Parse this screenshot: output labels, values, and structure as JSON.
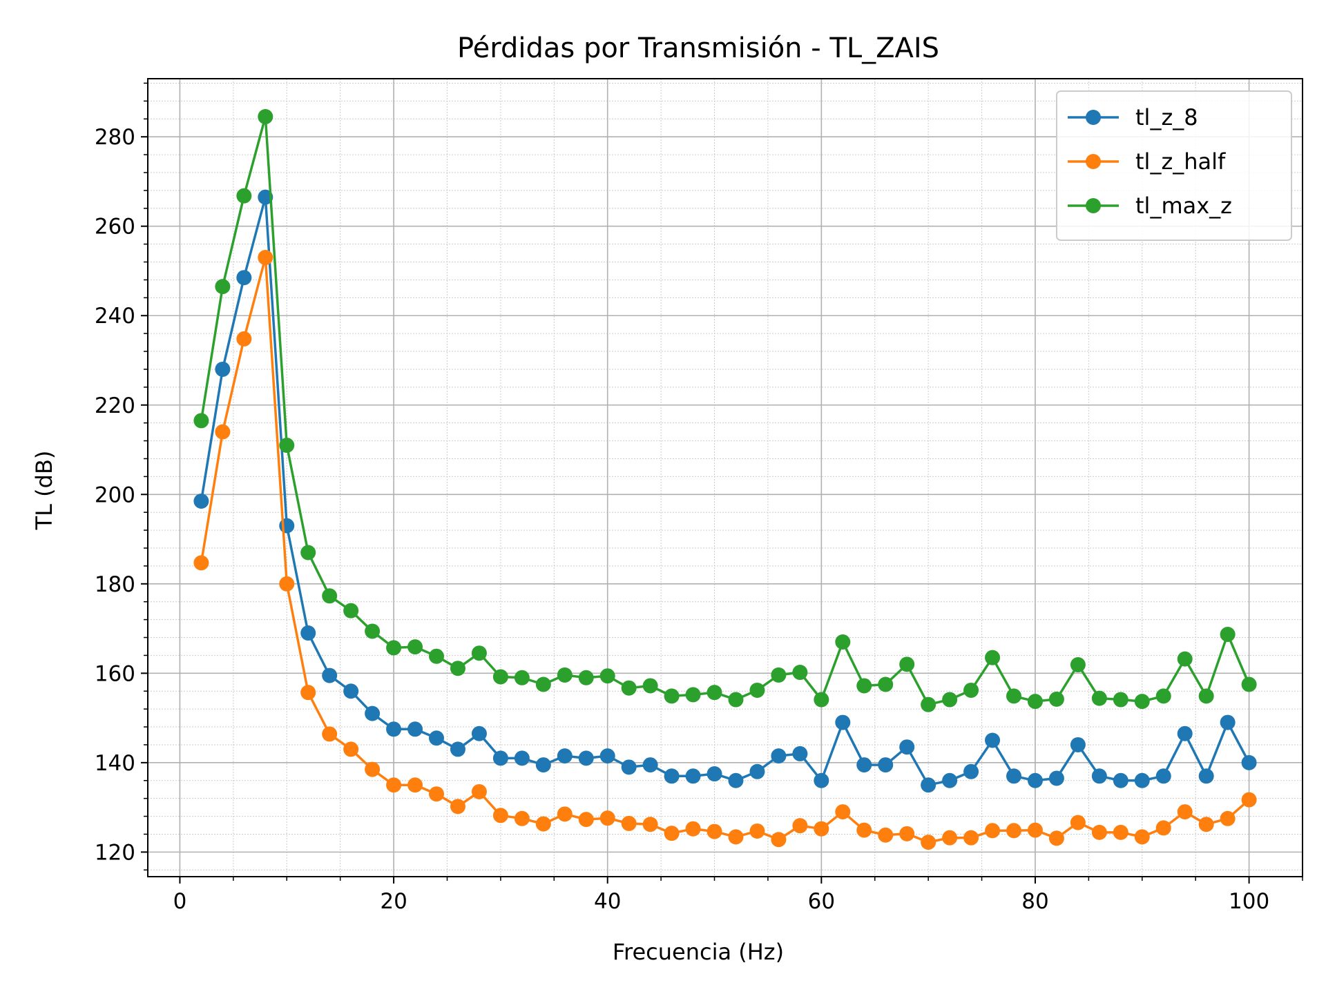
{
  "chart_data": {
    "type": "line",
    "title": "Pérdidas por Transmisión - TL_ZAIS",
    "xlabel": "Frecuencia (Hz)",
    "ylabel": "TL (dB)",
    "xlim": [
      -3,
      105
    ],
    "ylim": [
      114.5,
      293
    ],
    "xticks": [
      0,
      20,
      40,
      60,
      80,
      100
    ],
    "yticks": [
      120,
      140,
      160,
      180,
      200,
      220,
      240,
      260,
      280
    ],
    "grid": true,
    "minor_grid": true,
    "legend_position": "upper right",
    "x": [
      2,
      4,
      6,
      8,
      10,
      12,
      14,
      16,
      18,
      20,
      22,
      24,
      26,
      28,
      30,
      32,
      34,
      36,
      38,
      40,
      42,
      44,
      46,
      48,
      50,
      52,
      54,
      56,
      58,
      60,
      62,
      64,
      66,
      68,
      70,
      72,
      74,
      76,
      78,
      80,
      82,
      84,
      86,
      88,
      90,
      92,
      94,
      96,
      98,
      100
    ],
    "series": [
      {
        "name": "tl_z_8",
        "color": "#1f77b4",
        "values": [
          198.5,
          228,
          248.5,
          266.5,
          193,
          169,
          159.5,
          156,
          151,
          147.5,
          147.5,
          145.5,
          143,
          146.5,
          141,
          141,
          139.5,
          141.5,
          141,
          141.5,
          139,
          139.5,
          137,
          137,
          137.5,
          136,
          138,
          141.5,
          142,
          136,
          149,
          139.5,
          139.5,
          143.5,
          135,
          136,
          138,
          145,
          137,
          136,
          136.5,
          144,
          137,
          136,
          136,
          137,
          146.5,
          137,
          149,
          140
        ]
      },
      {
        "name": "tl_z_half",
        "color": "#ff7f0e",
        "values": [
          184.7,
          214,
          234.8,
          253,
          180,
          155.7,
          146.4,
          143,
          138.5,
          135,
          135,
          133,
          130.2,
          133.5,
          128.2,
          127.5,
          126.3,
          128.5,
          127.3,
          127.6,
          126.4,
          126.2,
          124.2,
          125.2,
          124.6,
          123.4,
          124.7,
          122.8,
          125.9,
          125.2,
          129,
          124.9,
          123.8,
          124.1,
          122.2,
          123.2,
          123.2,
          124.8,
          124.8,
          124.9,
          123.1,
          126.6,
          124.4,
          124.4,
          123.4,
          125.4,
          129,
          126.2,
          127.5,
          131.7
        ]
      },
      {
        "name": "tl_max_z",
        "color": "#2ca02c",
        "values": [
          216.5,
          246.5,
          266.8,
          284.5,
          211,
          187,
          177.3,
          174,
          169.4,
          165.7,
          165.9,
          163.8,
          161.1,
          164.5,
          159.2,
          159,
          157.5,
          159.6,
          159,
          159.4,
          156.7,
          157.2,
          154.9,
          155.2,
          155.7,
          154.1,
          156.2,
          159.6,
          160.2,
          154.1,
          167,
          157.2,
          157.5,
          162,
          153,
          154.1,
          156.2,
          163.5,
          154.9,
          153.7,
          154.2,
          161.9,
          154.4,
          154.1,
          153.7,
          154.9,
          163.2,
          154.9,
          168.7,
          157.5
        ]
      }
    ]
  }
}
